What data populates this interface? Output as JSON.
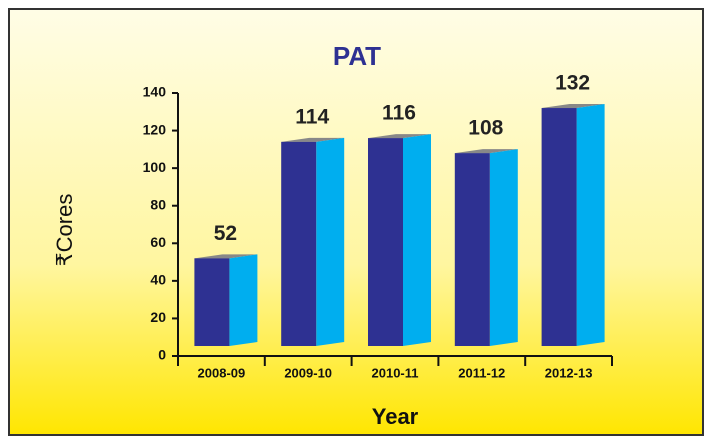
{
  "chart_data": {
    "type": "bar",
    "title": "PAT",
    "y_label": "₹Cores",
    "x_label": "Year",
    "categories": [
      "2008-09",
      "2009-10",
      "2010-11",
      "2011-12",
      "2012-13"
    ],
    "values": [
      52,
      114,
      116,
      108,
      132
    ],
    "color": "#2e3192",
    "side_color": "#00aeef",
    "ylim": [
      0,
      140
    ],
    "yticks": [
      0,
      20,
      40,
      60,
      80,
      100,
      120,
      140
    ],
    "grid": false
  }
}
